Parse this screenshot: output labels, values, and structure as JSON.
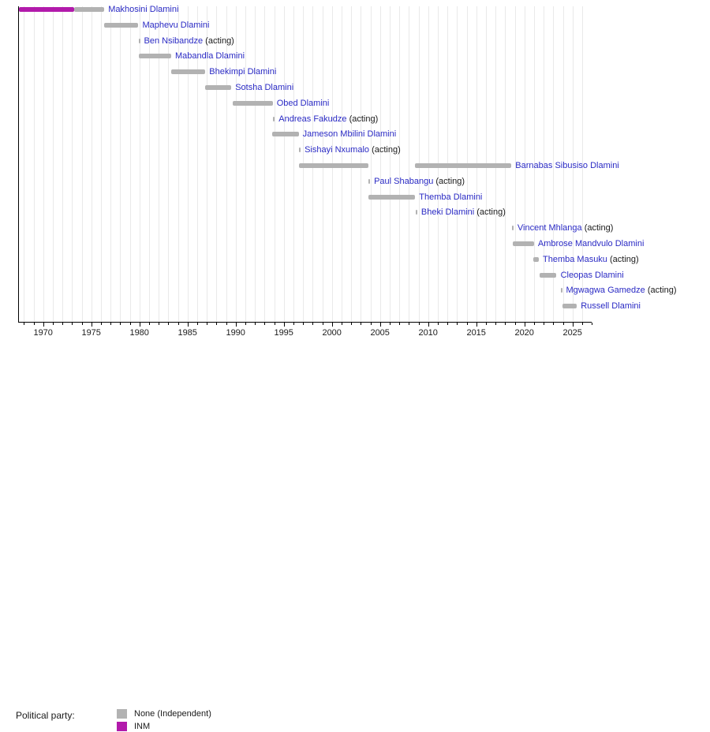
{
  "chart_data": {
    "type": "timeline",
    "description": "Timeline of Prime Ministers of Eswatini with terms shown as horizontal bars colored by political party",
    "axis": {
      "unit": "year",
      "start": 1967.4,
      "end": 2027.0,
      "minor_tick_step": 1,
      "labeled_years": [
        1970,
        1975,
        1980,
        1985,
        1990,
        1995,
        2000,
        2005,
        2010,
        2015,
        2020,
        2025
      ],
      "grid": true
    },
    "party_colors": {
      "None": "#b2b2b2",
      "INM": "#b21aab"
    },
    "rows": [
      {
        "name": "Makhosini Dlamini",
        "acting": false,
        "segments": [
          {
            "start": 1967.45,
            "end": 1973.25,
            "party": "INM"
          },
          {
            "start": 1973.25,
            "end": 1976.35,
            "party": "None"
          }
        ]
      },
      {
        "name": "Maphevu Dlamini",
        "acting": false,
        "segments": [
          {
            "start": 1976.3,
            "end": 1979.9,
            "party": "None"
          }
        ]
      },
      {
        "name": "Ben Nsibandze",
        "acting": true,
        "segments": [
          {
            "start": 1979.9,
            "end": 1980.05,
            "party": "None"
          }
        ]
      },
      {
        "name": "Mabandla Dlamini",
        "acting": false,
        "segments": [
          {
            "start": 1979.95,
            "end": 1983.3,
            "party": "None"
          }
        ]
      },
      {
        "name": "Bhekimpi Dlamini",
        "acting": false,
        "segments": [
          {
            "start": 1983.3,
            "end": 1986.85,
            "party": "None"
          }
        ]
      },
      {
        "name": "Sotsha Dlamini",
        "acting": false,
        "segments": [
          {
            "start": 1986.85,
            "end": 1989.55,
            "party": "None"
          }
        ]
      },
      {
        "name": "Obed Dlamini",
        "acting": false,
        "segments": [
          {
            "start": 1989.7,
            "end": 1993.85,
            "party": "None"
          }
        ]
      },
      {
        "name": "Andreas Fakudze",
        "acting": true,
        "segments": [
          {
            "start": 1993.9,
            "end": 1994.05,
            "party": "None"
          }
        ]
      },
      {
        "name": "Jameson Mbilini Dlamini",
        "acting": false,
        "segments": [
          {
            "start": 1993.8,
            "end": 1996.55,
            "party": "None"
          }
        ]
      },
      {
        "name": "Sishayi Nxumalo",
        "acting": true,
        "segments": [
          {
            "start": 1996.55,
            "end": 1996.75,
            "party": "None"
          }
        ]
      },
      {
        "name": "Barnabas Sibusiso Dlamini",
        "acting": false,
        "segments": [
          {
            "start": 1996.55,
            "end": 2003.8,
            "party": "None"
          },
          {
            "start": 2008.65,
            "end": 2018.65,
            "party": "None"
          }
        ]
      },
      {
        "name": "Paul Shabangu",
        "acting": true,
        "segments": [
          {
            "start": 2003.8,
            "end": 2003.95,
            "party": "None"
          }
        ]
      },
      {
        "name": "Themba Dlamini",
        "acting": false,
        "segments": [
          {
            "start": 2003.75,
            "end": 2008.65,
            "party": "None"
          }
        ]
      },
      {
        "name": "Bheki Dlamini",
        "acting": true,
        "segments": [
          {
            "start": 2008.7,
            "end": 2008.85,
            "party": "None"
          }
        ]
      },
      {
        "name": "Vincent Mhlanga",
        "acting": true,
        "segments": [
          {
            "start": 2018.7,
            "end": 2018.85,
            "party": "None"
          }
        ]
      },
      {
        "name": "Ambrose Mandvulo Dlamini",
        "acting": false,
        "segments": [
          {
            "start": 2018.8,
            "end": 2021.0,
            "party": "None"
          }
        ]
      },
      {
        "name": "Themba Masuku",
        "acting": true,
        "segments": [
          {
            "start": 2020.95,
            "end": 2021.5,
            "party": "None"
          }
        ]
      },
      {
        "name": "Cleopas Dlamini",
        "acting": false,
        "segments": [
          {
            "start": 2021.6,
            "end": 2023.35,
            "party": "None"
          }
        ]
      },
      {
        "name": "Mgwagwa Gamedze",
        "acting": true,
        "segments": [
          {
            "start": 2023.75,
            "end": 2023.9,
            "party": "None"
          }
        ]
      },
      {
        "name": "Russell Dlamini",
        "acting": false,
        "segments": [
          {
            "start": 2023.95,
            "end": 2025.45,
            "party": "None"
          }
        ]
      }
    ],
    "acting_suffix": " (acting)",
    "legend": {
      "title": "Political party:",
      "items": [
        {
          "label": "None (Independent)",
          "party": "None"
        },
        {
          "label": "INM",
          "party": "INM"
        }
      ]
    }
  }
}
